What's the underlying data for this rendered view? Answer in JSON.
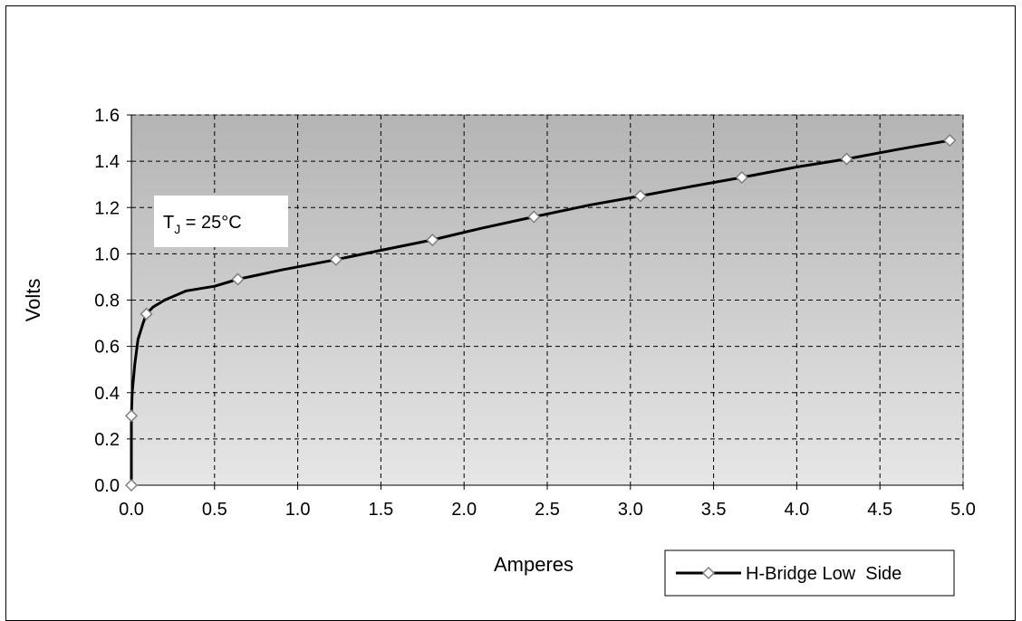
{
  "chart_data": {
    "type": "line",
    "xlabel": "Amperes",
    "ylabel": "Volts",
    "xlim": [
      0.0,
      5.0
    ],
    "ylim": [
      0.0,
      1.6
    ],
    "x_ticks": [
      "0.0",
      "0.5",
      "1.0",
      "1.5",
      "2.0",
      "2.5",
      "3.0",
      "3.5",
      "4.0",
      "4.5",
      "5.0"
    ],
    "y_ticks": [
      "0.0",
      "0.2",
      "0.4",
      "0.6",
      "0.8",
      "1.0",
      "1.2",
      "1.4",
      "1.6"
    ],
    "grid": true,
    "legend_position": "bottom-right",
    "annotation": {
      "base": "T",
      "subscript": "J",
      "rest": " = 25°C"
    },
    "series": [
      {
        "name": "H-Bridge Low  Side",
        "color": "#000000",
        "marker": "diamond",
        "curve": [
          [
            0.0,
            0.0
          ],
          [
            0.0,
            0.3
          ],
          [
            0.005,
            0.4
          ],
          [
            0.02,
            0.52
          ],
          [
            0.04,
            0.63
          ],
          [
            0.07,
            0.7
          ],
          [
            0.09,
            0.74
          ],
          [
            0.13,
            0.77
          ],
          [
            0.2,
            0.8
          ],
          [
            0.33,
            0.84
          ],
          [
            0.5,
            0.86
          ],
          [
            0.64,
            0.89
          ],
          [
            0.9,
            0.93
          ],
          [
            1.23,
            0.975
          ],
          [
            1.5,
            1.015
          ],
          [
            1.81,
            1.06
          ],
          [
            2.1,
            1.11
          ],
          [
            2.42,
            1.16
          ],
          [
            2.75,
            1.21
          ],
          [
            3.06,
            1.25
          ],
          [
            3.36,
            1.29
          ],
          [
            3.67,
            1.33
          ],
          [
            4.0,
            1.375
          ],
          [
            4.3,
            1.41
          ],
          [
            4.6,
            1.45
          ],
          [
            4.92,
            1.49
          ]
        ],
        "markers": [
          [
            0.0,
            0.0
          ],
          [
            0.0,
            0.3
          ],
          [
            0.09,
            0.74
          ],
          [
            0.64,
            0.89
          ],
          [
            1.23,
            0.975
          ],
          [
            1.81,
            1.06
          ],
          [
            2.42,
            1.16
          ],
          [
            3.06,
            1.25
          ],
          [
            3.67,
            1.33
          ],
          [
            4.3,
            1.41
          ],
          [
            4.92,
            1.49
          ]
        ]
      }
    ]
  }
}
